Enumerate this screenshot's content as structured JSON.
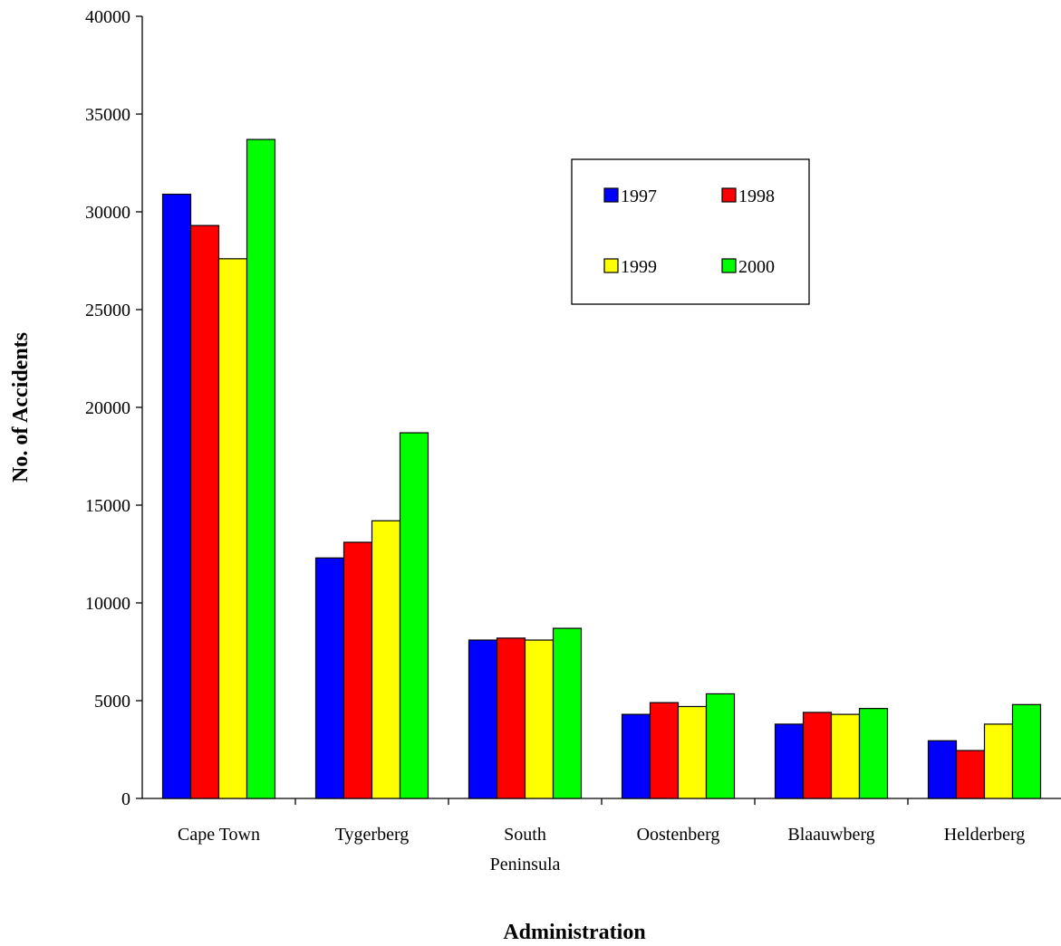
{
  "chart_data": {
    "type": "bar",
    "categories": [
      [
        "Cape Town"
      ],
      [
        "Tygerberg"
      ],
      [
        "South",
        "Peninsula"
      ],
      [
        "Oostenberg"
      ],
      [
        "Blaauwberg"
      ],
      [
        "Helderberg"
      ]
    ],
    "series": [
      {
        "name": "1997",
        "color": "#0000ff",
        "values": [
          30900,
          12300,
          8100,
          4300,
          3800,
          2950
        ]
      },
      {
        "name": "1998",
        "color": "#ff0000",
        "values": [
          29300,
          13100,
          8200,
          4900,
          4400,
          2450
        ]
      },
      {
        "name": "1999",
        "color": "#ffff00",
        "values": [
          27600,
          14200,
          8100,
          4700,
          4300,
          3800
        ]
      },
      {
        "name": "2000",
        "color": "#00ff00",
        "values": [
          33700,
          18700,
          8700,
          5350,
          4600,
          4800
        ]
      }
    ],
    "xlabel": "Administration",
    "ylabel": "No. of Accidents",
    "ylim": [
      0,
      40000
    ],
    "yticks": [
      "0",
      "5000",
      "10000",
      "15000",
      "20000",
      "25000",
      "30000",
      "35000",
      "40000"
    ],
    "grid": false,
    "legend_position": "top-right"
  }
}
